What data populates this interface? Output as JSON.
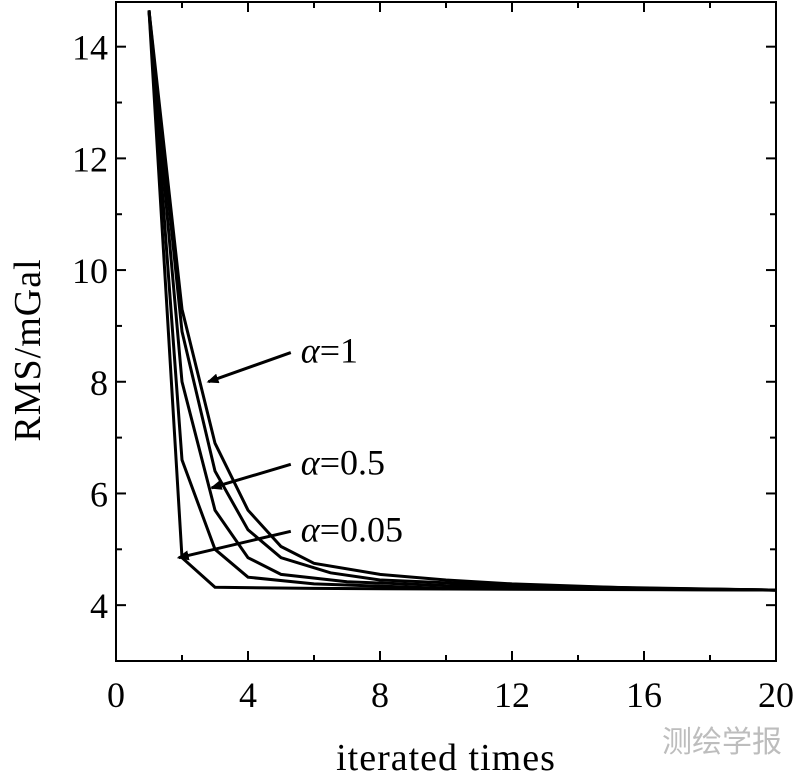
{
  "chart_data": {
    "type": "line",
    "title": "",
    "xlabel": "iterated times",
    "ylabel": "RMS/mGal",
    "xlim": [
      0,
      20
    ],
    "ylim": [
      3,
      14.8
    ],
    "xticks": [
      0,
      4,
      8,
      12,
      16,
      20
    ],
    "yticks": [
      4,
      6,
      8,
      10,
      12,
      14
    ],
    "grid": false,
    "series": [
      {
        "label_id": "alpha-1",
        "x": [
          1,
          2,
          3,
          4,
          5,
          6,
          8,
          10,
          12,
          16,
          20
        ],
        "y": [
          14.65,
          9.3,
          6.9,
          5.7,
          5.05,
          4.75,
          4.55,
          4.45,
          4.38,
          4.3,
          4.27
        ]
      },
      {
        "label_id": "alpha-0.5",
        "x": [
          1,
          2,
          3,
          4,
          5,
          6.5,
          8,
          12,
          20
        ],
        "y": [
          14.65,
          8.9,
          6.4,
          5.35,
          4.85,
          4.58,
          4.45,
          4.35,
          4.27
        ]
      },
      {
        "label_id": "mid-1",
        "x": [
          1,
          2,
          3,
          4,
          5,
          7,
          10,
          20
        ],
        "y": [
          14.65,
          8.0,
          5.7,
          4.85,
          4.55,
          4.42,
          4.35,
          4.27
        ]
      },
      {
        "label_id": "mid-2",
        "x": [
          1,
          2,
          3,
          4,
          6,
          10,
          20
        ],
        "y": [
          14.65,
          6.6,
          5.0,
          4.5,
          4.38,
          4.3,
          4.27
        ]
      },
      {
        "label_id": "alpha-0.05",
        "x": [
          1,
          2,
          3,
          6,
          10,
          20
        ],
        "y": [
          14.65,
          4.85,
          4.32,
          4.3,
          4.29,
          4.27
        ]
      }
    ],
    "annotations": [
      {
        "text": "α=1",
        "x": 5.6,
        "y": 8.2,
        "arrow_to": [
          2.8,
          8.0
        ]
      },
      {
        "text": "α=0.5",
        "x": 5.6,
        "y": 6.2,
        "arrow_to": [
          2.9,
          6.1
        ]
      },
      {
        "text": "α=0.05",
        "x": 5.6,
        "y": 5.0,
        "arrow_to": [
          1.9,
          4.85
        ]
      }
    ]
  },
  "watermark": "测绘学报"
}
